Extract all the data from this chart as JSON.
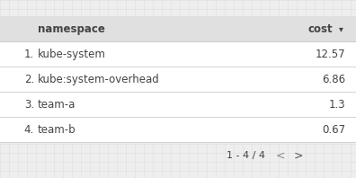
{
  "columns": [
    "namespace",
    "cost"
  ],
  "rows": [
    [
      "1.",
      "kube-system",
      "12.57"
    ],
    [
      "2.",
      "kube:system-overhead",
      "6.86"
    ],
    [
      "3.",
      "team-a",
      "1.3"
    ],
    [
      "4.",
      "team-b",
      "0.67"
    ]
  ],
  "pagination": "1 - 4 / 4",
  "header_bg": "#e0e0e0",
  "row_bg": "#ffffff",
  "grid_color": "#d8d8d8",
  "separator_color": "#cccccc",
  "text_color": "#444444",
  "footer_bg": "#f5f5f5",
  "font_size": 8.5,
  "header_font_size": 8.5,
  "background_color": "#eeeeee"
}
